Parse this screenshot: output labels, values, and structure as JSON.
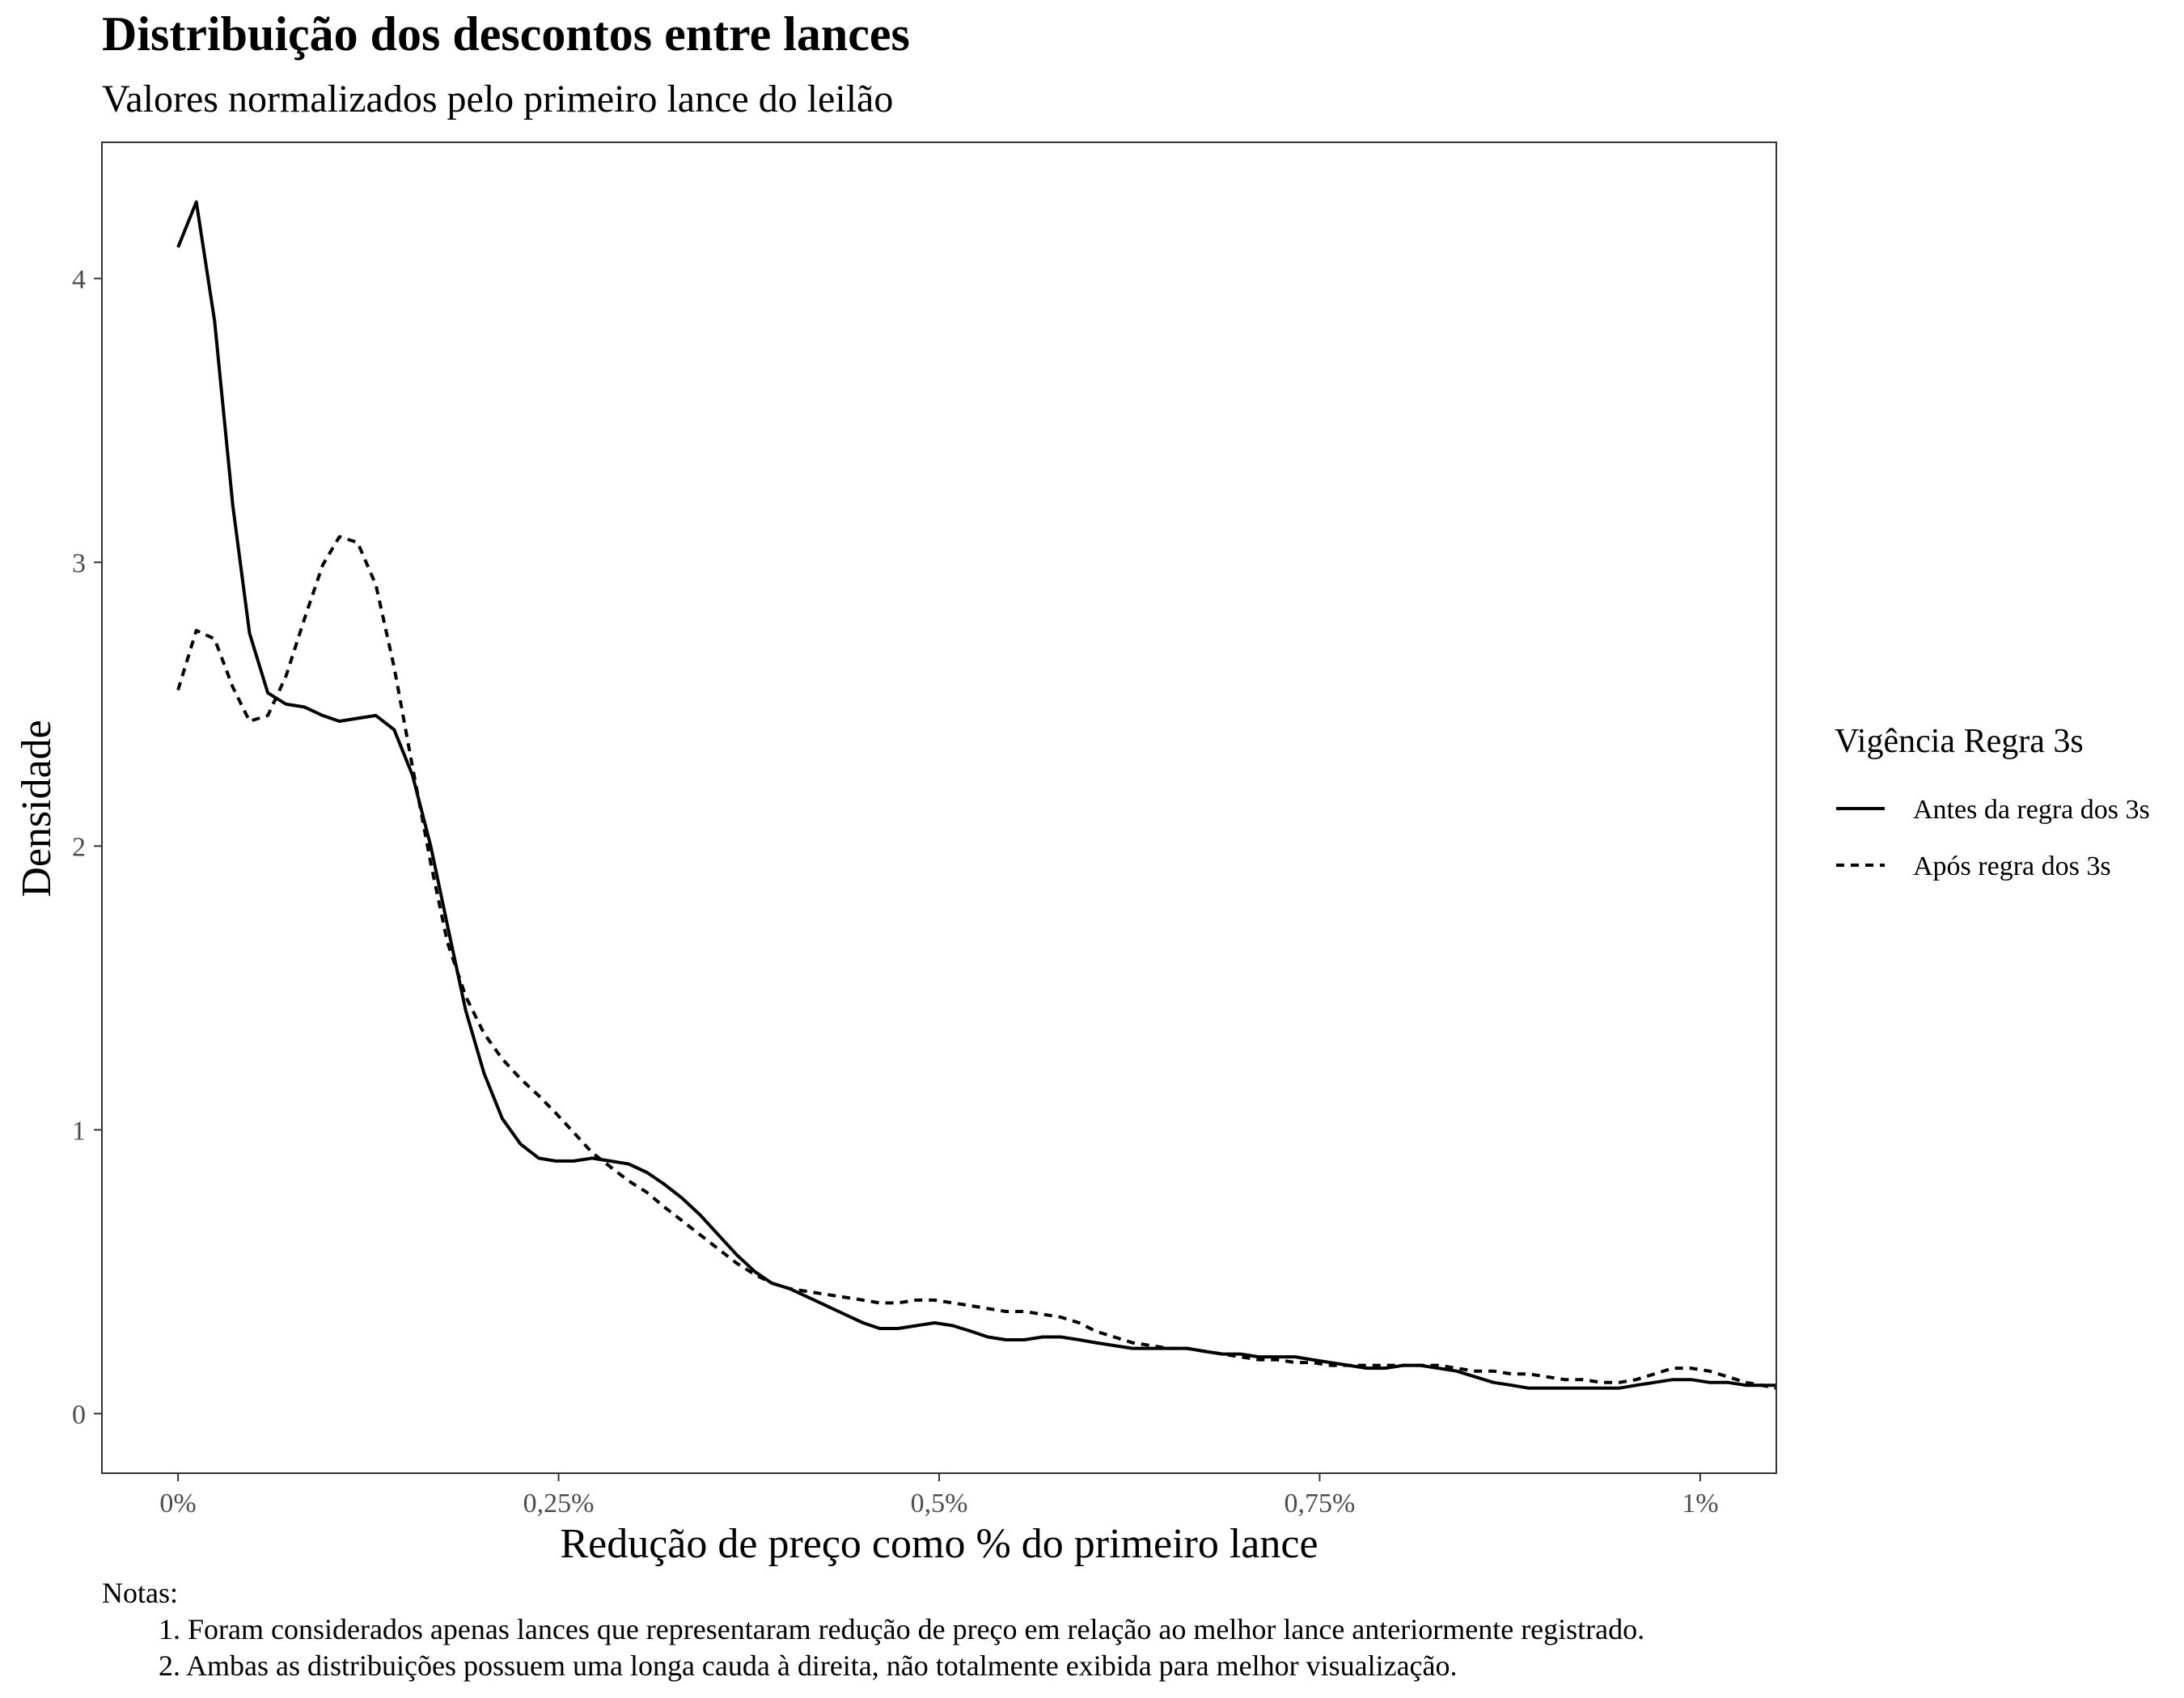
{
  "chart_data": {
    "type": "line",
    "title": "Distribuição dos descontos entre lances",
    "subtitle": "Valores normalizados pelo primeiro lance do leilão",
    "xlabel": "Redução de preço como % do primeiro lance",
    "ylabel": "Densidade",
    "xlim": [
      -0.05,
      1.05
    ],
    "ylim": [
      -0.21,
      4.48
    ],
    "x_ticks": [
      0,
      0.25,
      0.5,
      0.75,
      1
    ],
    "x_tick_labels": [
      "0%",
      "0,25%",
      "0,5%",
      "0,75%",
      "1%"
    ],
    "y_ticks": [
      0,
      1,
      2,
      3,
      4
    ],
    "y_tick_labels": [
      "0",
      "1",
      "2",
      "3",
      "4"
    ],
    "grid": false,
    "legend": {
      "title": "Vigência Regra 3s",
      "placement": "right"
    },
    "series": [
      {
        "name": "Antes da regra dos 3s",
        "line_style": "solid",
        "color": "#000000",
        "points": [
          [
            0,
            4.11
          ],
          [
            0.012,
            4.27
          ],
          [
            0.024,
            3.85
          ],
          [
            0.036,
            3.2
          ],
          [
            0.047,
            2.75
          ],
          [
            0.059,
            2.54
          ],
          [
            0.071,
            2.5
          ],
          [
            0.083,
            2.49
          ],
          [
            0.095,
            2.46
          ],
          [
            0.106,
            2.44
          ],
          [
            0.118,
            2.45
          ],
          [
            0.13,
            2.46
          ],
          [
            0.142,
            2.41
          ],
          [
            0.154,
            2.25
          ],
          [
            0.166,
            2.0
          ],
          [
            0.177,
            1.72
          ],
          [
            0.189,
            1.42
          ],
          [
            0.201,
            1.2
          ],
          [
            0.213,
            1.04
          ],
          [
            0.225,
            0.95
          ],
          [
            0.237,
            0.9
          ],
          [
            0.248,
            0.89
          ],
          [
            0.26,
            0.89
          ],
          [
            0.272,
            0.9
          ],
          [
            0.284,
            0.89
          ],
          [
            0.296,
            0.88
          ],
          [
            0.308,
            0.85
          ],
          [
            0.319,
            0.81
          ],
          [
            0.331,
            0.76
          ],
          [
            0.343,
            0.7
          ],
          [
            0.355,
            0.63
          ],
          [
            0.367,
            0.56
          ],
          [
            0.379,
            0.5
          ],
          [
            0.39,
            0.46
          ],
          [
            0.402,
            0.44
          ],
          [
            0.414,
            0.41
          ],
          [
            0.426,
            0.38
          ],
          [
            0.438,
            0.35
          ],
          [
            0.45,
            0.32
          ],
          [
            0.461,
            0.3
          ],
          [
            0.473,
            0.3
          ],
          [
            0.485,
            0.31
          ],
          [
            0.497,
            0.32
          ],
          [
            0.509,
            0.31
          ],
          [
            0.521,
            0.29
          ],
          [
            0.532,
            0.27
          ],
          [
            0.544,
            0.26
          ],
          [
            0.556,
            0.26
          ],
          [
            0.568,
            0.27
          ],
          [
            0.58,
            0.27
          ],
          [
            0.592,
            0.26
          ],
          [
            0.603,
            0.25
          ],
          [
            0.615,
            0.24
          ],
          [
            0.627,
            0.23
          ],
          [
            0.639,
            0.23
          ],
          [
            0.651,
            0.23
          ],
          [
            0.663,
            0.23
          ],
          [
            0.674,
            0.22
          ],
          [
            0.686,
            0.21
          ],
          [
            0.698,
            0.21
          ],
          [
            0.71,
            0.2
          ],
          [
            0.722,
            0.2
          ],
          [
            0.734,
            0.2
          ],
          [
            0.745,
            0.19
          ],
          [
            0.757,
            0.18
          ],
          [
            0.769,
            0.17
          ],
          [
            0.781,
            0.16
          ],
          [
            0.793,
            0.16
          ],
          [
            0.805,
            0.17
          ],
          [
            0.816,
            0.17
          ],
          [
            0.828,
            0.16
          ],
          [
            0.84,
            0.15
          ],
          [
            0.852,
            0.13
          ],
          [
            0.864,
            0.11
          ],
          [
            0.876,
            0.1
          ],
          [
            0.887,
            0.09
          ],
          [
            0.899,
            0.09
          ],
          [
            0.911,
            0.09
          ],
          [
            0.923,
            0.09
          ],
          [
            0.935,
            0.09
          ],
          [
            0.947,
            0.09
          ],
          [
            0.958,
            0.1
          ],
          [
            0.97,
            0.11
          ],
          [
            0.982,
            0.12
          ],
          [
            0.994,
            0.12
          ],
          [
            1.006,
            0.11
          ],
          [
            1.018,
            0.11
          ],
          [
            1.03,
            0.1
          ],
          [
            1.05,
            0.1
          ]
        ]
      },
      {
        "name": "Após regra dos 3s",
        "line_style": "dashed",
        "color": "#000000",
        "points": [
          [
            0,
            2.55
          ],
          [
            0.012,
            2.76
          ],
          [
            0.024,
            2.73
          ],
          [
            0.036,
            2.56
          ],
          [
            0.047,
            2.44
          ],
          [
            0.059,
            2.46
          ],
          [
            0.071,
            2.6
          ],
          [
            0.083,
            2.8
          ],
          [
            0.095,
            2.99
          ],
          [
            0.106,
            3.09
          ],
          [
            0.118,
            3.07
          ],
          [
            0.13,
            2.92
          ],
          [
            0.142,
            2.63
          ],
          [
            0.154,
            2.28
          ],
          [
            0.166,
            1.94
          ],
          [
            0.177,
            1.66
          ],
          [
            0.189,
            1.47
          ],
          [
            0.201,
            1.34
          ],
          [
            0.213,
            1.25
          ],
          [
            0.225,
            1.18
          ],
          [
            0.237,
            1.12
          ],
          [
            0.248,
            1.06
          ],
          [
            0.26,
            0.99
          ],
          [
            0.272,
            0.92
          ],
          [
            0.284,
            0.87
          ],
          [
            0.296,
            0.82
          ],
          [
            0.308,
            0.78
          ],
          [
            0.319,
            0.73
          ],
          [
            0.331,
            0.68
          ],
          [
            0.343,
            0.63
          ],
          [
            0.355,
            0.58
          ],
          [
            0.367,
            0.53
          ],
          [
            0.379,
            0.49
          ],
          [
            0.39,
            0.46
          ],
          [
            0.402,
            0.44
          ],
          [
            0.414,
            0.43
          ],
          [
            0.426,
            0.42
          ],
          [
            0.438,
            0.41
          ],
          [
            0.45,
            0.4
          ],
          [
            0.461,
            0.39
          ],
          [
            0.473,
            0.39
          ],
          [
            0.485,
            0.4
          ],
          [
            0.497,
            0.4
          ],
          [
            0.509,
            0.39
          ],
          [
            0.521,
            0.38
          ],
          [
            0.532,
            0.37
          ],
          [
            0.544,
            0.36
          ],
          [
            0.556,
            0.36
          ],
          [
            0.568,
            0.35
          ],
          [
            0.58,
            0.34
          ],
          [
            0.592,
            0.32
          ],
          [
            0.603,
            0.29
          ],
          [
            0.615,
            0.27
          ],
          [
            0.627,
            0.25
          ],
          [
            0.639,
            0.24
          ],
          [
            0.651,
            0.23
          ],
          [
            0.663,
            0.23
          ],
          [
            0.674,
            0.22
          ],
          [
            0.686,
            0.21
          ],
          [
            0.698,
            0.2
          ],
          [
            0.71,
            0.19
          ],
          [
            0.722,
            0.19
          ],
          [
            0.734,
            0.18
          ],
          [
            0.745,
            0.18
          ],
          [
            0.757,
            0.17
          ],
          [
            0.769,
            0.17
          ],
          [
            0.781,
            0.17
          ],
          [
            0.793,
            0.17
          ],
          [
            0.805,
            0.17
          ],
          [
            0.816,
            0.17
          ],
          [
            0.828,
            0.17
          ],
          [
            0.84,
            0.16
          ],
          [
            0.852,
            0.15
          ],
          [
            0.864,
            0.15
          ],
          [
            0.876,
            0.14
          ],
          [
            0.887,
            0.14
          ],
          [
            0.899,
            0.13
          ],
          [
            0.911,
            0.12
          ],
          [
            0.923,
            0.12
          ],
          [
            0.935,
            0.11
          ],
          [
            0.947,
            0.11
          ],
          [
            0.958,
            0.12
          ],
          [
            0.97,
            0.14
          ],
          [
            0.982,
            0.16
          ],
          [
            0.994,
            0.16
          ],
          [
            1.006,
            0.15
          ],
          [
            1.018,
            0.13
          ],
          [
            1.03,
            0.11
          ],
          [
            1.05,
            0.09
          ]
        ]
      }
    ]
  },
  "notes": {
    "heading": "Notas:",
    "items": [
      "1. Foram considerados apenas lances que representaram redução de preço em relação ao melhor lance anteriormente registrado.",
      "2. Ambas as distribuições possuem uma longa cauda à direita, não totalmente exibida para melhor visualização."
    ]
  }
}
